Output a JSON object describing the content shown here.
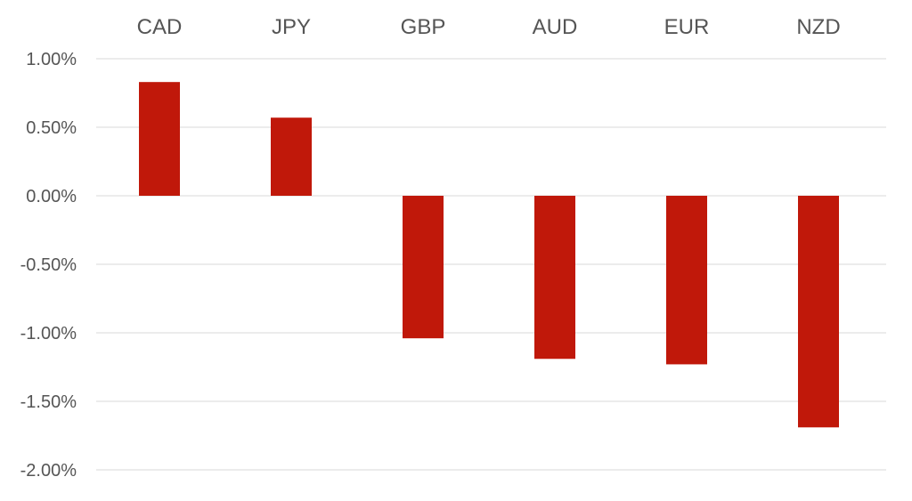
{
  "chart_data": {
    "type": "bar",
    "title": "",
    "xlabel": "",
    "ylabel": "",
    "categories": [
      "CAD",
      "JPY",
      "GBP",
      "AUD",
      "EUR",
      "NZD"
    ],
    "series": [
      {
        "values": [
          0.83,
          0.57,
          -1.04,
          -1.19,
          -1.23,
          -1.69
        ]
      }
    ],
    "ylim": [
      -2.0,
      1.0
    ],
    "yticks": [
      1.0,
      0.5,
      0.0,
      -0.5,
      -1.0,
      -1.5,
      -2.0
    ],
    "ytick_labels": [
      "1.00%",
      "0.50%",
      "0.00%",
      "-0.50%",
      "-1.00%",
      "-1.50%",
      "-2.00%"
    ],
    "category_label_position": "top",
    "grid": true,
    "legend": "none",
    "colors": {
      "bar": "#c0180a",
      "grid": "#d9d9d9",
      "text": "#555555"
    }
  }
}
